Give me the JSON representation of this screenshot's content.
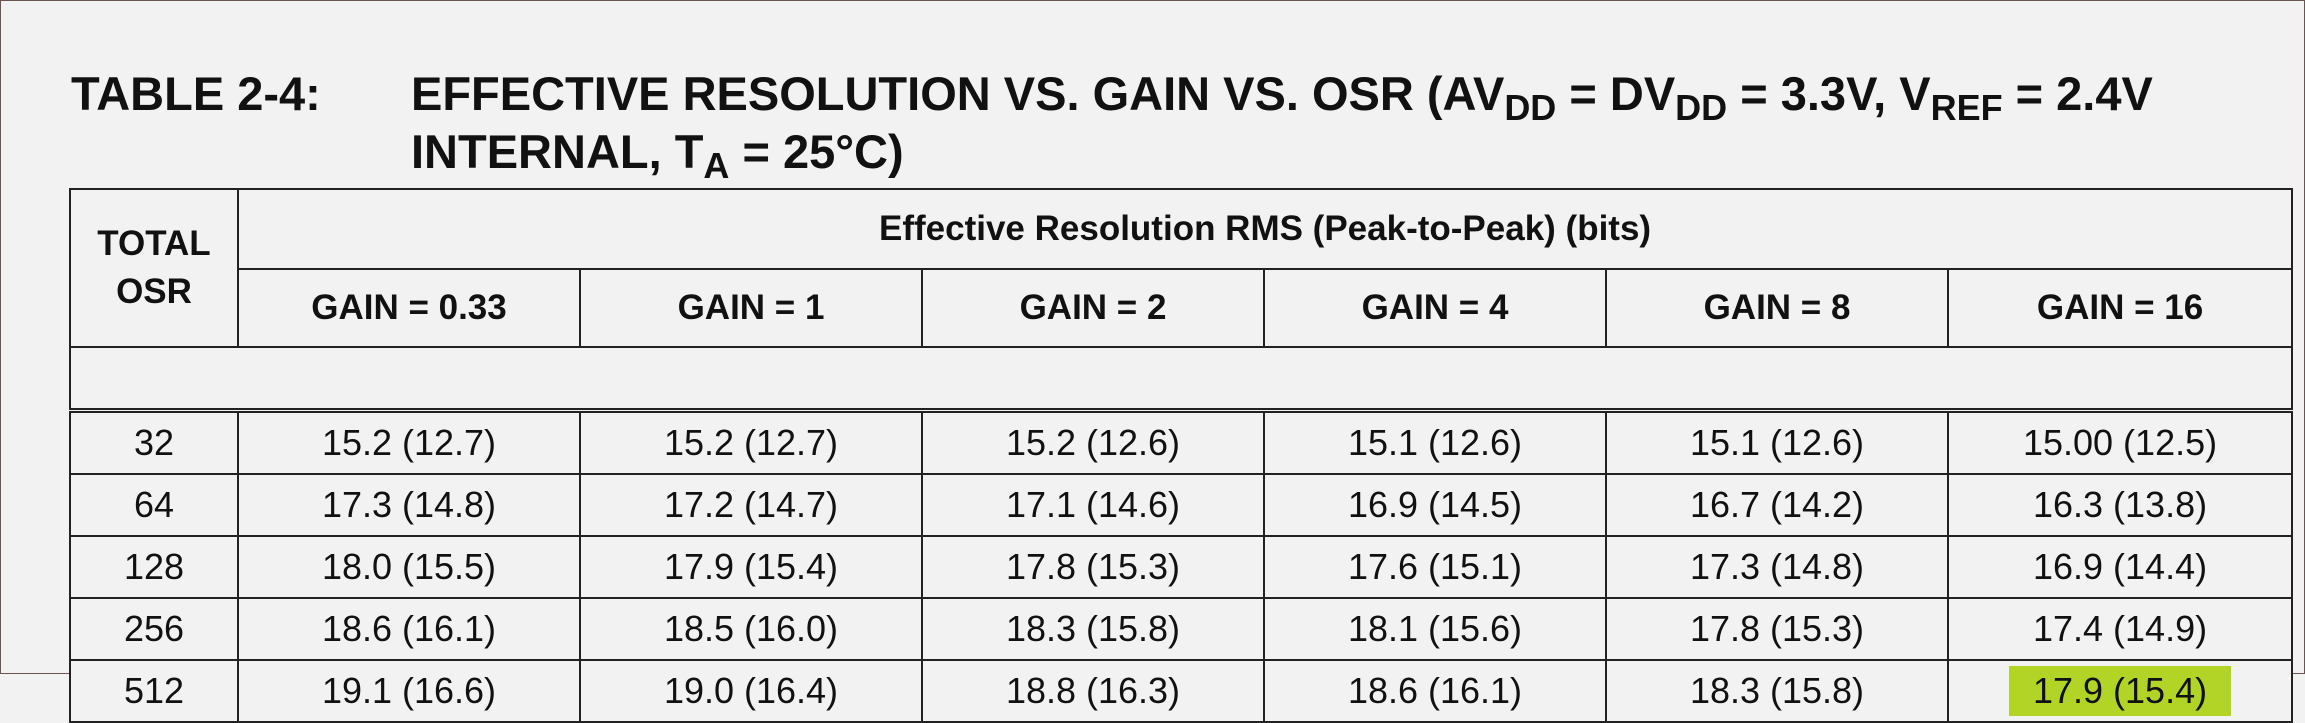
{
  "title": {
    "label": "TABLE 2-4:",
    "line1_a": "EFFECTIVE RESOLUTION VS. GAIN VS. OSR (AV",
    "line1_sub1": "DD",
    "line1_b": " = DV",
    "line1_sub2": "DD",
    "line1_c": " = 3.3V, V",
    "line1_sub3": "REF",
    "line1_d": " = 2.4V",
    "line2_a": "INTERNAL, T",
    "line2_sub": "A",
    "line2_b": " = 25°C)"
  },
  "table": {
    "osr_header_line1": "TOTAL",
    "osr_header_line2": "OSR",
    "group_header": "Effective Resolution RMS (Peak-to-Peak) (bits)",
    "gain_headers": [
      "GAIN = 0.33",
      "GAIN = 1",
      "GAIN = 2",
      "GAIN = 4",
      "GAIN = 8",
      "GAIN = 16"
    ],
    "rows": [
      {
        "osr": "32",
        "cells": [
          "15.2 (12.7)",
          "15.2 (12.7)",
          "15.2 (12.6)",
          "15.1 (12.6)",
          "15.1 (12.6)",
          "15.00 (12.5)"
        ]
      },
      {
        "osr": "64",
        "cells": [
          "17.3 (14.8)",
          "17.2 (14.7)",
          "17.1 (14.6)",
          "16.9 (14.5)",
          "16.7 (14.2)",
          "16.3 (13.8)"
        ]
      },
      {
        "osr": "128",
        "cells": [
          "18.0 (15.5)",
          "17.9 (15.4)",
          "17.8 (15.3)",
          "17.6 (15.1)",
          "17.3 (14.8)",
          "16.9 (14.4)"
        ]
      },
      {
        "osr": "256",
        "cells": [
          "18.6 (16.1)",
          "18.5 (16.0)",
          "18.3 (15.8)",
          "18.1 (15.6)",
          "17.8 (15.3)",
          "17.4 (14.9)"
        ]
      },
      {
        "osr": "512",
        "cells": [
          "19.1 (16.6)",
          "19.0 (16.4)",
          "18.8 (16.3)",
          "18.6 (16.1)",
          "18.3 (15.8)",
          "17.9 (15.4)"
        ]
      }
    ],
    "highlight_color": "#b1d426"
  }
}
